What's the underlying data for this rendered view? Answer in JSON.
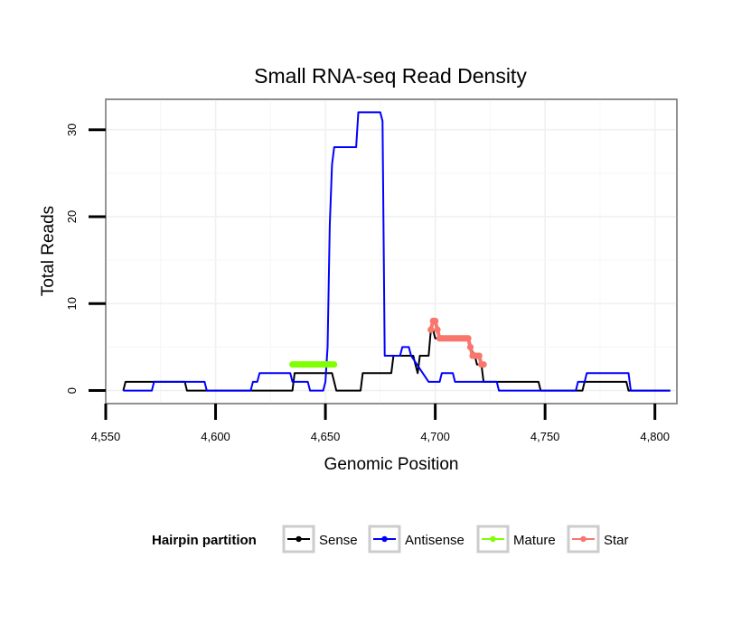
{
  "chart_data": {
    "type": "line",
    "title": "Small RNA-seq Read Density",
    "xlabel": "Genomic Position",
    "ylabel": "Total Reads",
    "xlim": [
      4550,
      4810
    ],
    "ylim": [
      -1.5,
      33.5
    ],
    "xticks": [
      4550,
      4600,
      4650,
      4700,
      4750,
      4800
    ],
    "xtick_labels": [
      "4,550",
      "4,600",
      "4,650",
      "4,700",
      "4,750",
      "4,800"
    ],
    "yticks": [
      0,
      10,
      20,
      30
    ],
    "ytick_labels": [
      "0",
      "10",
      "20",
      "30"
    ],
    "grid": true,
    "legend": {
      "title": "Hairpin partition",
      "position": "bottom",
      "entries": [
        "Sense",
        "Antisense",
        "Mature",
        "Star"
      ]
    },
    "series": [
      {
        "name": "Sense",
        "color": "#000000",
        "style": "line",
        "x": [
          4558,
          4559,
          4586,
          4587,
          4635,
          4636,
          4653,
          4654,
          4655,
          4666,
          4667,
          4680,
          4681,
          4690,
          4691,
          4692,
          4693,
          4697,
          4698,
          4699,
          4700,
          4715,
          4716,
          4718,
          4719,
          4721,
          4722,
          4747,
          4748,
          4767,
          4768,
          4787,
          4788,
          4807
        ],
        "y": [
          0,
          1,
          1,
          0,
          0,
          2,
          2,
          1,
          0,
          0,
          2,
          2,
          4,
          4,
          3,
          2,
          4,
          4,
          7,
          7,
          6,
          6,
          5,
          4,
          3,
          3,
          1,
          1,
          0,
          0,
          1,
          1,
          0,
          0
        ]
      },
      {
        "name": "Antisense",
        "color": "#0000ff",
        "style": "line",
        "x": [
          4558,
          4571,
          4572,
          4595,
          4596,
          4616,
          4617,
          4619,
          4620,
          4634,
          4635,
          4642,
          4643,
          4649,
          4650,
          4651,
          4652,
          4653,
          4654,
          4655,
          4656,
          4664,
          4665,
          4675,
          4676,
          4677,
          4681,
          4684,
          4685,
          4688,
          4689,
          4697,
          4698,
          4702,
          4703,
          4708,
          4709,
          4728,
          4729,
          4745,
          4746,
          4764,
          4765,
          4768,
          4769,
          4788,
          4789,
          4807
        ],
        "y": [
          0,
          0,
          1,
          1,
          0,
          0,
          1,
          1,
          2,
          2,
          1,
          1,
          0,
          0,
          1,
          5,
          19,
          26,
          28,
          28,
          28,
          28,
          32,
          32,
          31,
          4,
          4,
          4,
          5,
          5,
          4,
          1,
          1,
          1,
          2,
          2,
          1,
          1,
          0,
          0,
          0,
          0,
          1,
          1,
          2,
          2,
          0,
          0
        ]
      },
      {
        "name": "Mature",
        "color": "#7fff00",
        "style": "thick",
        "x": [
          4635,
          4654
        ],
        "y": [
          3,
          3
        ]
      },
      {
        "name": "Star",
        "color": "#f8766d",
        "style": "dots",
        "x": [
          4698,
          4699,
          4700,
          4701,
          4702,
          4703,
          4704,
          4705,
          4706,
          4707,
          4708,
          4709,
          4710,
          4711,
          4712,
          4713,
          4714,
          4715,
          4716,
          4717,
          4718,
          4719,
          4720,
          4721,
          4722
        ],
        "y": [
          7,
          8,
          8,
          7,
          6,
          6,
          6,
          6,
          6,
          6,
          6,
          6,
          6,
          6,
          6,
          6,
          6,
          6,
          5,
          4,
          4,
          4,
          4,
          3,
          3
        ]
      }
    ]
  }
}
